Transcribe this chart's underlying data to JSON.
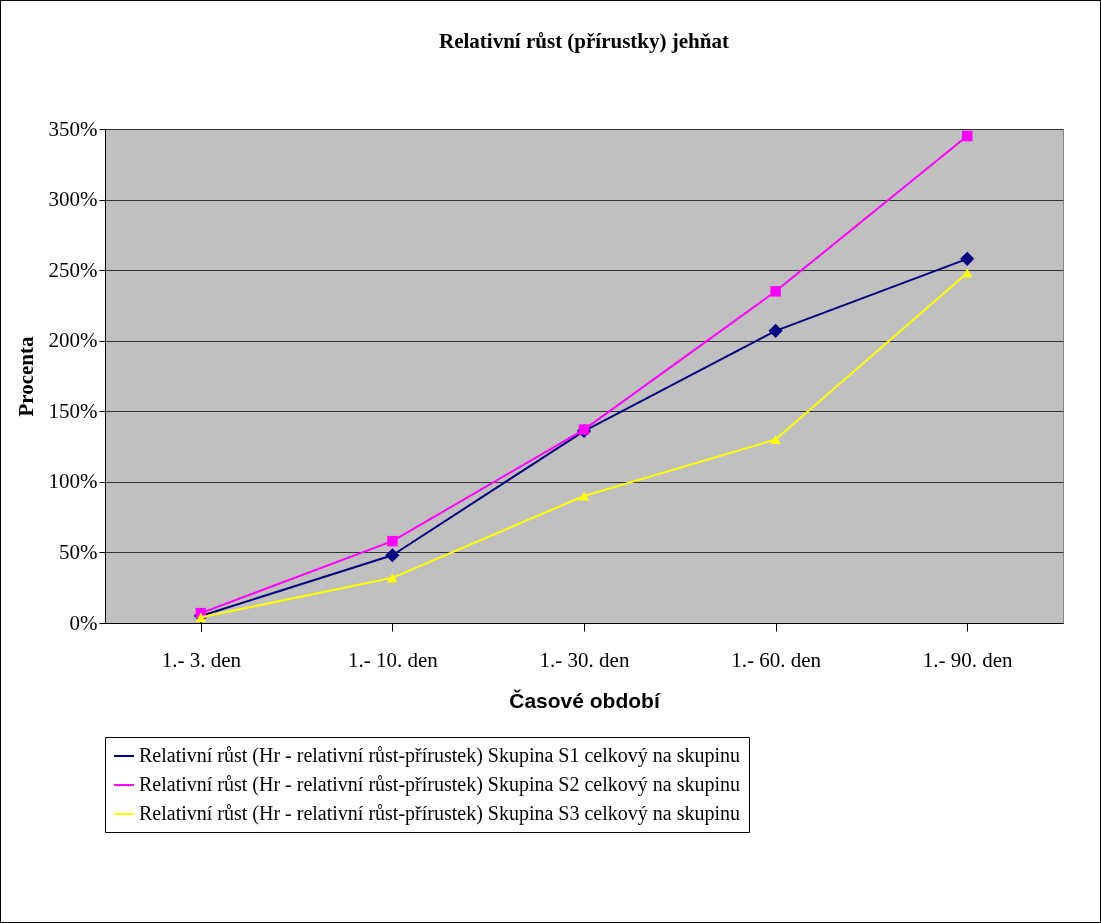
{
  "chart_data": {
    "type": "line",
    "title": "Relativní růst (přírustky) jehňat",
    "xlabel": "Časové období",
    "ylabel": "Procenta",
    "categories": [
      "1.- 3. den",
      "1.- 10. den",
      "1.- 30. den",
      "1.- 60. den",
      "1.- 90. den"
    ],
    "series": [
      {
        "name": "Relativní růst (Hr - relativní růst-přírustek) Skupina S1 celkový na skupinu",
        "color": "#000080",
        "marker": "diamond",
        "values": [
          5,
          48,
          136,
          207,
          258
        ]
      },
      {
        "name": "Relativní růst (Hr - relativní růst-přírustek) Skupina S2 celkový na skupinu",
        "color": "#ff00ff",
        "marker": "square",
        "values": [
          7,
          58,
          137,
          235,
          345
        ]
      },
      {
        "name": "Relativní růst (Hr - relativní růst-přírustek) Skupina S3 celkový na skupinu",
        "color": "#ffff00",
        "marker": "triangle",
        "values": [
          4,
          32,
          90,
          130,
          248
        ]
      }
    ],
    "ylim": [
      0,
      350
    ],
    "yticks": [
      {
        "value": 0,
        "label": "0%"
      },
      {
        "value": 50,
        "label": "50%"
      },
      {
        "value": 100,
        "label": "100%"
      },
      {
        "value": 150,
        "label": "150%"
      },
      {
        "value": 200,
        "label": "200%"
      },
      {
        "value": 250,
        "label": "250%"
      },
      {
        "value": 300,
        "label": "300%"
      },
      {
        "value": 350,
        "label": "350%"
      }
    ],
    "grid": "y",
    "legend": "bottom",
    "line_style": "solid"
  }
}
